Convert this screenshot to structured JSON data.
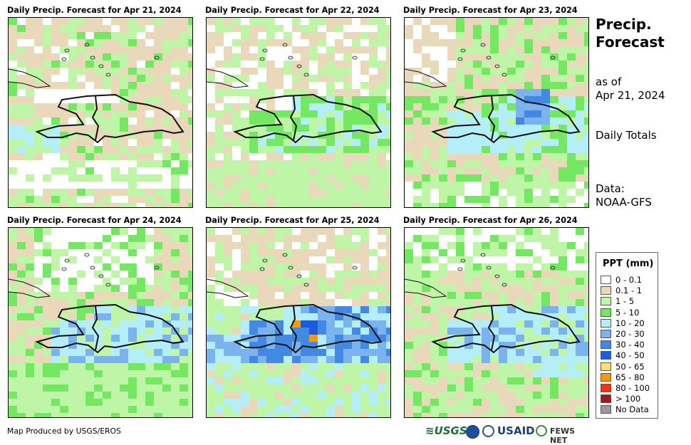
{
  "panels": [
    {
      "title": "Daily Precip. Forecast for Apr 21, 2024"
    },
    {
      "title": "Daily Precip. Forecast for Apr 22, 2024"
    },
    {
      "title": "Daily Precip. Forecast for Apr 23, 2024"
    },
    {
      "title": "Daily Precip. Forecast for Apr 24, 2024"
    },
    {
      "title": "Daily Precip. Forecast for Apr 25, 2024"
    },
    {
      "title": "Daily Precip. Forecast for Apr 26, 2024"
    }
  ],
  "side": {
    "title_line1": "Precip.",
    "title_line2": "Forecast",
    "asof_line1": "as of",
    "asof_line2": "Apr 21, 2024",
    "totals": "Daily Totals",
    "data_line1": "Data:",
    "data_line2": "NOAA-GFS"
  },
  "legend": {
    "title": "PPT (mm)",
    "items": [
      {
        "label": "0 - 0.1",
        "color": "#ffffff"
      },
      {
        "label": "0.1 - 1",
        "color": "#ead8bb"
      },
      {
        "label": "1 - 5",
        "color": "#bff5a6"
      },
      {
        "label": "5 - 10",
        "color": "#74e862"
      },
      {
        "label": "10 - 20",
        "color": "#b4eef8"
      },
      {
        "label": "20 - 30",
        "color": "#7ab3ee"
      },
      {
        "label": "30 - 40",
        "color": "#4389e4"
      },
      {
        "label": "40 - 50",
        "color": "#1a5ce0"
      },
      {
        "label": "50 - 65",
        "color": "#fde07a"
      },
      {
        "label": "65 - 80",
        "color": "#f59a0b"
      },
      {
        "label": "80 - 100",
        "color": "#ee3316"
      },
      {
        "label": "> 100",
        "color": "#9e1a1a"
      },
      {
        "label": "No Data",
        "color": "#9a9a9a"
      }
    ]
  },
  "footer": {
    "credit": "Map Produced by USGS/EROS",
    "logo_usgs": "≋USGS",
    "logo_usaid": "USAID",
    "logo_fews": "FEWS NET"
  }
}
